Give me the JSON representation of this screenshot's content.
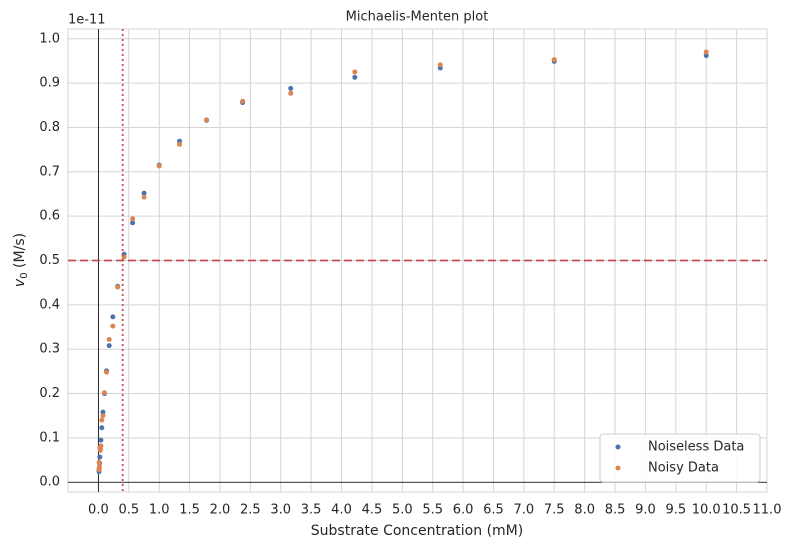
{
  "chart_data": {
    "type": "scatter",
    "title": "Michaelis-Menten plot",
    "x_label": "Substrate Concentration (mM)",
    "y_label": [
      "v",
      "0",
      " (M/s)"
    ],
    "y_offset_label": "1e-11",
    "x": [
      10.0,
      7.5,
      5.625,
      4.219,
      3.164,
      2.373,
      1.78,
      1.335,
      1.001,
      0.751,
      0.563,
      0.422,
      0.317,
      0.238,
      0.178,
      0.134,
      0.1,
      0.075,
      0.056,
      0.042,
      0.032,
      0.024,
      0.018,
      0.013,
      0.01
    ],
    "series": [
      {
        "name": "Noiseless Data",
        "color": "#4c72b0",
        "values": [
          0.962,
          0.949,
          0.934,
          0.913,
          0.888,
          0.856,
          0.816,
          0.769,
          0.715,
          0.652,
          0.585,
          0.514,
          0.442,
          0.373,
          0.308,
          0.251,
          0.2,
          0.158,
          0.123,
          0.095,
          0.074,
          0.057,
          0.043,
          0.031,
          0.024
        ]
      },
      {
        "name": "Noisy Data",
        "color": "#dd8452",
        "values": [
          0.97,
          0.953,
          0.941,
          0.925,
          0.877,
          0.859,
          0.817,
          0.762,
          0.713,
          0.643,
          0.594,
          0.508,
          0.44,
          0.352,
          0.322,
          0.248,
          0.202,
          0.15,
          0.14,
          0.082,
          0.072,
          0.078,
          0.035,
          0.045,
          0.028
        ]
      }
    ],
    "reference_lines": [
      {
        "axis": "y",
        "value": 0.5,
        "color": "#c44e52",
        "style": "dashed"
      },
      {
        "axis": "x",
        "value": 0.4,
        "color": "#c44e52",
        "style": "dotted"
      }
    ],
    "xlim": [
      -0.5,
      11.0
    ],
    "ylim": [
      -0.022,
      1.022
    ],
    "xticks": [
      {
        "value": 0,
        "label": "0.0"
      },
      {
        "value": 0.5,
        "label": "0.5"
      },
      {
        "value": 1,
        "label": "1.0"
      },
      {
        "value": 1.5,
        "label": "1.5"
      },
      {
        "value": 2,
        "label": "2.0"
      },
      {
        "value": 2.5,
        "label": "2.5"
      },
      {
        "value": 3,
        "label": "3.0"
      },
      {
        "value": 3.5,
        "label": "3.5"
      },
      {
        "value": 4,
        "label": "4.0"
      },
      {
        "value": 4.5,
        "label": "4.5"
      },
      {
        "value": 5,
        "label": "5.0"
      },
      {
        "value": 5.5,
        "label": "5.5"
      },
      {
        "value": 6,
        "label": "6.0"
      },
      {
        "value": 6.5,
        "label": "6.5"
      },
      {
        "value": 7,
        "label": "7.0"
      },
      {
        "value": 7.5,
        "label": "7.5"
      },
      {
        "value": 8,
        "label": "8.0"
      },
      {
        "value": 8.5,
        "label": "8.5"
      },
      {
        "value": 9,
        "label": "9.0"
      },
      {
        "value": 9.5,
        "label": "9.5"
      },
      {
        "value": 10,
        "label": "10.0"
      },
      {
        "value": 10.5,
        "label": "10.5"
      },
      {
        "value": 11,
        "label": "11.0"
      }
    ],
    "yticks": [
      {
        "value": 0,
        "label": "0.0"
      },
      {
        "value": 0.1,
        "label": "0.1"
      },
      {
        "value": 0.2,
        "label": "0.2"
      },
      {
        "value": 0.3,
        "label": "0.3"
      },
      {
        "value": 0.4,
        "label": "0.4"
      },
      {
        "value": 0.5,
        "label": "0.5"
      },
      {
        "value": 0.6,
        "label": "0.6"
      },
      {
        "value": 0.7,
        "label": "0.7"
      },
      {
        "value": 0.8,
        "label": "0.8"
      },
      {
        "value": 0.9,
        "label": "0.9"
      },
      {
        "value": 1,
        "label": "1.0"
      }
    ],
    "grid": true,
    "legend": "lower right"
  }
}
